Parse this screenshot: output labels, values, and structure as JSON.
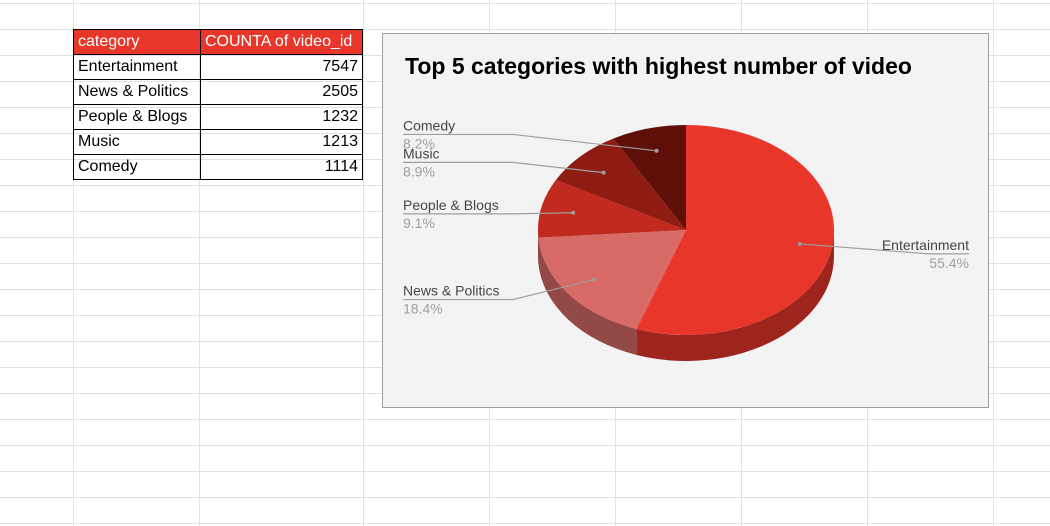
{
  "table": {
    "headers": [
      "category",
      "COUNTA of video_id"
    ],
    "rows": [
      {
        "category": "Entertainment",
        "count": "7547"
      },
      {
        "category": "News & Politics",
        "count": "2505"
      },
      {
        "category": "People & Blogs",
        "count": "1232"
      },
      {
        "category": "Music",
        "count": "1213"
      },
      {
        "category": "Comedy",
        "count": "1114"
      }
    ],
    "header_bg": "#e8372a"
  },
  "chart_data": {
    "type": "pie",
    "style": "3d",
    "title": "Top 5 categories with highest number of video",
    "legend": "labels with leader lines",
    "slices": [
      {
        "label": "Entertainment",
        "value": 7547,
        "percent": "55.4%",
        "color": "#e8372a"
      },
      {
        "label": "News & Politics",
        "value": 2505,
        "percent": "18.4%",
        "color": "#d86b66"
      },
      {
        "label": "People & Blogs",
        "value": 1232,
        "percent": "9.1%",
        "color": "#c32a1f"
      },
      {
        "label": "Music",
        "value": 1213,
        "percent": "8.9%",
        "color": "#8e1c13"
      },
      {
        "label": "Comedy",
        "value": 1114,
        "percent": "8.2%",
        "color": "#5e0f08"
      }
    ]
  }
}
